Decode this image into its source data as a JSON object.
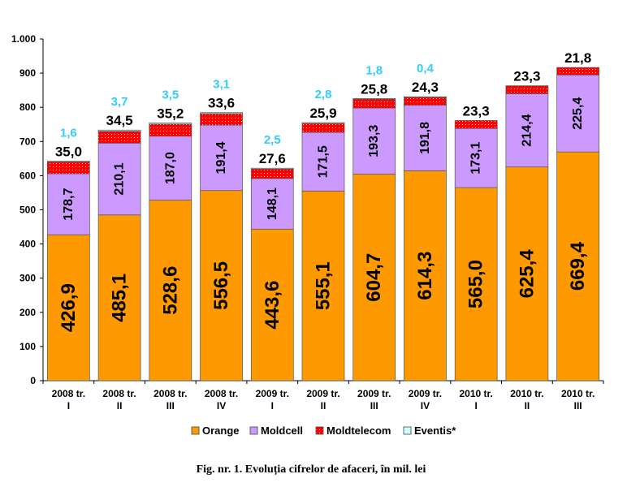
{
  "chart_data": {
    "type": "bar",
    "stacked": true,
    "title": "Fig. nr. 1. Evoluția cifrelor de afaceri, în mil. lei",
    "categories": [
      [
        "2008 tr.",
        "I"
      ],
      [
        "2008 tr.",
        "II"
      ],
      [
        "2008 tr.",
        "III"
      ],
      [
        "2008 tr.",
        "IV"
      ],
      [
        "2009 tr.",
        "I"
      ],
      [
        "2009 tr.",
        "II"
      ],
      [
        "2009 tr.",
        "III"
      ],
      [
        "2009 tr.",
        "IV"
      ],
      [
        "2010 tr.",
        "I"
      ],
      [
        "2010 tr.",
        "II"
      ],
      [
        "2010 tr.",
        "III"
      ]
    ],
    "series": [
      {
        "name": "Orange",
        "color": "#FF9900",
        "values": [
          426.9,
          485.1,
          528.6,
          556.5,
          443.6,
          555.1,
          604.7,
          614.3,
          565.0,
          625.4,
          669.4
        ],
        "labels": [
          "426,9",
          "485,1",
          "528,6",
          "556,5",
          "443,6",
          "555,1",
          "604,7",
          "614,3",
          "565,0",
          "625,4",
          "669,4"
        ]
      },
      {
        "name": "Moldcell",
        "color": "#CC99FF",
        "values": [
          178.7,
          210.1,
          187.0,
          191.4,
          148.1,
          171.5,
          193.3,
          191.8,
          173.1,
          214.4,
          225.4
        ],
        "labels": [
          "178,7",
          "210,1",
          "187,0",
          "191,4",
          "148,1",
          "171,5",
          "193,3",
          "191,8",
          "173,1",
          "214,4",
          "225,4"
        ]
      },
      {
        "name": "Moldtelecom",
        "color": "#FF0000",
        "values": [
          35.0,
          34.5,
          35.2,
          33.6,
          27.6,
          25.9,
          25.8,
          24.3,
          23.3,
          23.3,
          21.8
        ],
        "labels": [
          "35,0",
          "34,5",
          "35,2",
          "33,6",
          "27,6",
          "25,9",
          "25,8",
          "24,3",
          "23,3",
          "23,3",
          "21,8"
        ]
      },
      {
        "name": "Eventis*",
        "color": "#CCFFFF",
        "values": [
          1.6,
          3.7,
          3.5,
          3.1,
          2.5,
          2.8,
          1.8,
          0.4,
          null,
          null,
          null
        ],
        "labels": [
          "1,6",
          "3,7",
          "3,5",
          "3,1",
          "2,5",
          "2,8",
          "1,8",
          "0,4",
          null,
          null,
          null
        ],
        "label_color": "#33CCFF"
      }
    ],
    "ylim": [
      0,
      1000
    ],
    "yticks": [
      0,
      100,
      200,
      300,
      400,
      500,
      600,
      700,
      800,
      900,
      1000
    ],
    "ytick_labels": [
      "0",
      "100",
      "200",
      "300",
      "400",
      "500",
      "600",
      "700",
      "800",
      "900",
      "1.000"
    ],
    "grid": false,
    "legend": "bottom",
    "xlabel": "",
    "ylabel": ""
  }
}
